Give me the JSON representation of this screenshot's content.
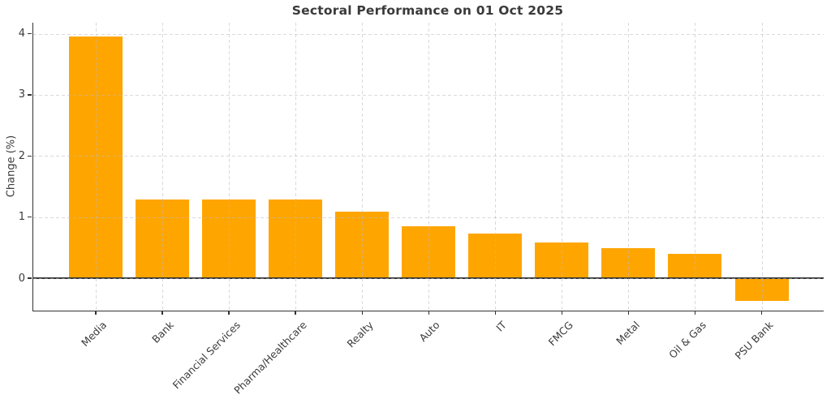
{
  "chart_data": {
    "type": "bar",
    "title": "Sectoral Performance on 01 Oct 2025",
    "xlabel": "",
    "ylabel": "Change (%)",
    "categories": [
      "Media",
      "Bank",
      "Financial Services",
      "Pharma/Healthcare",
      "Realty",
      "Auto",
      "IT",
      "FMCG",
      "Metal",
      "Oil & Gas",
      "PSU Bank"
    ],
    "values": [
      3.95,
      1.29,
      1.29,
      1.29,
      1.09,
      0.85,
      0.73,
      0.59,
      0.49,
      0.4,
      -0.37
    ],
    "yticks": [
      0,
      1,
      2,
      3,
      4
    ],
    "ylim": [
      -0.53,
      4.18
    ],
    "grid": "dashed, both axes, drawn over bars",
    "legend": "none",
    "colors": {
      "bar": "#FFA500",
      "axis": "#333333",
      "text": "#3b3b3b",
      "grid": "#d9d9d9",
      "background": "#ffffff"
    }
  }
}
